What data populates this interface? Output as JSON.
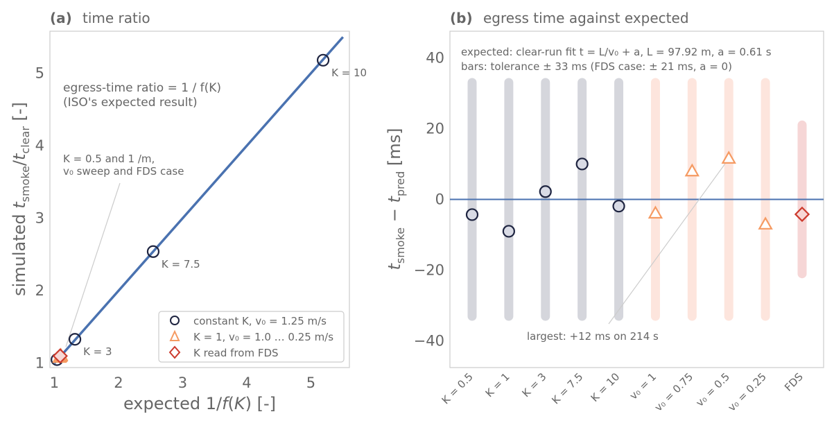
{
  "chart_data": [
    {
      "panel_label": "(a)",
      "title": "time ratio",
      "type": "scatter",
      "xlabel": "expected 1/f(K) [-]",
      "ylabel": "simulated t_smoke/t_clear [-]",
      "xlim": [
        0.93,
        5.6
      ],
      "ylim": [
        0.94,
        5.58
      ],
      "xticks": [
        1,
        2,
        3,
        4,
        5
      ],
      "yticks": [
        1,
        2,
        3,
        4,
        5
      ],
      "line": {
        "name": "egress-time ratio = 1 / f(K)",
        "x": [
          1,
          5.5
        ],
        "y": [
          1,
          5.5
        ],
        "color": "#4a72b0"
      },
      "series": [
        {
          "name": "constant K, v₀ = 1.25 m/s",
          "marker": "circle",
          "color": "#1e2440",
          "x": [
            1.04,
            1.32,
            2.54,
            5.19
          ],
          "y": [
            1.05,
            1.33,
            2.54,
            5.18
          ],
          "labels": [
            "",
            "K = 3",
            "K = 7.5",
            "K = 10"
          ]
        },
        {
          "name": "K = 1, v₀ = 1.0 … 0.25 m/s",
          "marker": "triangle",
          "color": "#f59a62",
          "x": [
            1.08,
            1.09,
            1.1,
            1.1
          ],
          "y": [
            1.08,
            1.09,
            1.1,
            1.11
          ]
        },
        {
          "name": "K read from FDS",
          "marker": "diamond",
          "color": "#cc3a2d",
          "x": [
            1.09
          ],
          "y": [
            1.1
          ]
        }
      ],
      "annotations": {
        "line_note_1": "egress-time ratio = 1 / f(K)",
        "line_note_2": "(ISO's expected result)",
        "cluster_note_1": "K = 0.5 and 1 /m,",
        "cluster_note_2": "v₀ sweep and FDS case"
      },
      "legend_placement": "bottom-right",
      "grid": false
    },
    {
      "panel_label": "(b)",
      "title": "egress time against expected",
      "type": "scatter",
      "xlabel": "",
      "ylabel": "t_smoke − t_pred [ms]",
      "ylim": [
        -47.5,
        47.5
      ],
      "yticks": [
        -40,
        -20,
        0,
        20,
        40
      ],
      "categories": [
        "K = 0.5",
        "K = 1",
        "K = 3",
        "K = 7.5",
        "K = 10",
        "v₀ = 1",
        "v₀ = 0.75",
        "v₀ = 0.5",
        "v₀ = 0.25",
        "FDS"
      ],
      "values": [
        -4.3,
        -9,
        2.2,
        10,
        -1.9,
        -3.9,
        8,
        11.6,
        -7,
        -4.2
      ],
      "markers": [
        "circle",
        "circle",
        "circle",
        "circle",
        "circle",
        "triangle",
        "triangle",
        "triangle",
        "triangle",
        "diamond"
      ],
      "tolerance": [
        33,
        33,
        33,
        33,
        33,
        33,
        33,
        33,
        33,
        21
      ],
      "reference_line": 0,
      "annotations": {
        "fit_note": "expected: clear-run fit t = L/v₀ + a, L = 97.92 m, a = 0.61 s",
        "bars_note": "bars: tolerance ± 33 ms (FDS case: ± 21 ms, a = 0)",
        "largest_note": "largest: +12 ms on 214 s"
      },
      "grid": false
    }
  ],
  "colors": {
    "line": "#4a72b0",
    "circle": "#1e2440",
    "circle_fill": "#d9dbe5",
    "triangle": "#f59a62",
    "triangle_fill": "#ffffff",
    "diamond": "#cc3a2d",
    "diamond_fill": "#f8d8d6",
    "bar_grey": "#d5d6dc",
    "bar_orange": "#fde5dd",
    "bar_red": "#f6d6d6"
  }
}
